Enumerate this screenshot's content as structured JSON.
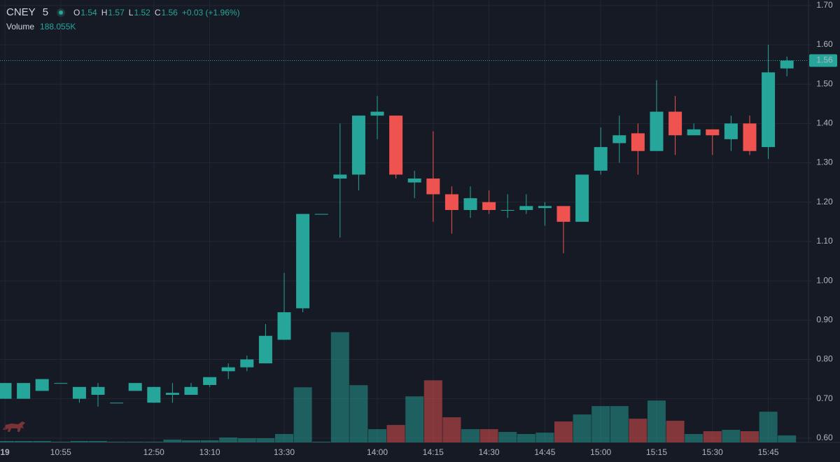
{
  "chart_data": {
    "type": "candlestick",
    "symbol": "CNEY",
    "interval": "5",
    "ohlc_letters": [
      "O",
      "H",
      "L",
      "C"
    ],
    "change_label": "+0.03 (+1.96%)",
    "categories": [
      "19",
      null,
      null,
      "10:55",
      null,
      null,
      null,
      null,
      "12:50",
      null,
      null,
      "13:10",
      null,
      null,
      null,
      "13:30",
      null,
      null,
      null,
      null,
      "14:00",
      null,
      null,
      "14:15",
      null,
      null,
      "14:30",
      null,
      null,
      "14:45",
      null,
      null,
      "15:00",
      null,
      null,
      "15:15",
      null,
      null,
      "15:30",
      null,
      null,
      "15:45",
      null
    ],
    "open": [
      0.7,
      0.7,
      0.72,
      0.74,
      0.7,
      0.71,
      0.69,
      0.72,
      0.69,
      0.71,
      0.71,
      0.735,
      0.77,
      0.78,
      0.79,
      0.85,
      0.93,
      1.17,
      1.26,
      1.27,
      1.42,
      1.42,
      1.25,
      1.26,
      1.22,
      1.18,
      1.2,
      1.18,
      1.18,
      1.185,
      1.19,
      1.15,
      1.28,
      1.35,
      1.375,
      1.33,
      1.43,
      1.37,
      1.385,
      1.36,
      1.4,
      1.34,
      1.54
    ],
    "high": [
      0.74,
      0.74,
      0.75,
      0.74,
      0.73,
      0.74,
      0.69,
      0.74,
      0.73,
      0.74,
      0.74,
      0.755,
      0.79,
      0.81,
      0.89,
      1.02,
      1.17,
      1.17,
      1.4,
      1.42,
      1.47,
      1.42,
      1.28,
      1.38,
      1.24,
      1.24,
      1.23,
      1.22,
      1.22,
      1.2,
      1.19,
      1.27,
      1.39,
      1.42,
      1.4,
      1.51,
      1.47,
      1.4,
      1.385,
      1.42,
      1.42,
      1.6,
      1.57
    ],
    "low": [
      0.7,
      0.7,
      0.72,
      0.74,
      0.69,
      0.68,
      0.69,
      0.72,
      0.69,
      0.69,
      0.71,
      0.73,
      0.75,
      0.77,
      0.79,
      0.85,
      0.92,
      1.17,
      1.11,
      1.23,
      1.36,
      1.26,
      1.21,
      1.15,
      1.12,
      1.16,
      1.17,
      1.16,
      1.17,
      1.14,
      1.07,
      1.15,
      1.27,
      1.3,
      1.27,
      1.33,
      1.32,
      1.37,
      1.32,
      1.33,
      1.32,
      1.31,
      1.52
    ],
    "close": [
      0.74,
      0.74,
      0.75,
      0.74,
      0.73,
      0.73,
      0.69,
      0.74,
      0.73,
      0.715,
      0.73,
      0.755,
      0.78,
      0.8,
      0.86,
      0.92,
      1.17,
      1.17,
      1.27,
      1.42,
      1.43,
      1.27,
      1.26,
      1.22,
      1.18,
      1.21,
      1.18,
      1.18,
      1.19,
      1.19,
      1.15,
      1.27,
      1.34,
      1.37,
      1.33,
      1.43,
      1.37,
      1.385,
      1.37,
      1.4,
      1.33,
      1.53,
      1.56
    ],
    "up_color": "#26a69a",
    "down_color": "#ef5350",
    "ylim": [
      0.589,
      1.714
    ],
    "yticks": [
      {
        "value": 1.7,
        "label": "1.70"
      },
      {
        "value": 1.6,
        "label": "1.60"
      },
      {
        "value": 1.5,
        "label": "1.50"
      },
      {
        "value": 1.4,
        "label": "1.40"
      },
      {
        "value": 1.3,
        "label": "1.30"
      },
      {
        "value": 1.2,
        "label": "1.20"
      },
      {
        "value": 1.1,
        "label": "1.10"
      },
      {
        "value": 1.0,
        "label": "1.00"
      },
      {
        "value": 0.9,
        "label": "0.90"
      },
      {
        "value": 0.8,
        "label": "0.80"
      },
      {
        "value": 0.7,
        "label": "0.70"
      },
      {
        "value": 0.6,
        "label": "0.60"
      }
    ],
    "grid": true,
    "volume": {
      "name": "Volume",
      "values": [
        38,
        38,
        38,
        19,
        38,
        38,
        19,
        19,
        19,
        75,
        56,
        56,
        132,
        113,
        113,
        226,
        1485,
        19,
        2970,
        1542,
        357,
        470,
        1241,
        1673,
        677,
        357,
        357,
        282,
        226,
        263,
        564,
        752,
        978,
        978,
        639,
        1128,
        583,
        226,
        301,
        338,
        301,
        827,
        188.055
      ],
      "last_label": "188.055K",
      "ylim": [
        0,
        3300
      ]
    }
  }
}
